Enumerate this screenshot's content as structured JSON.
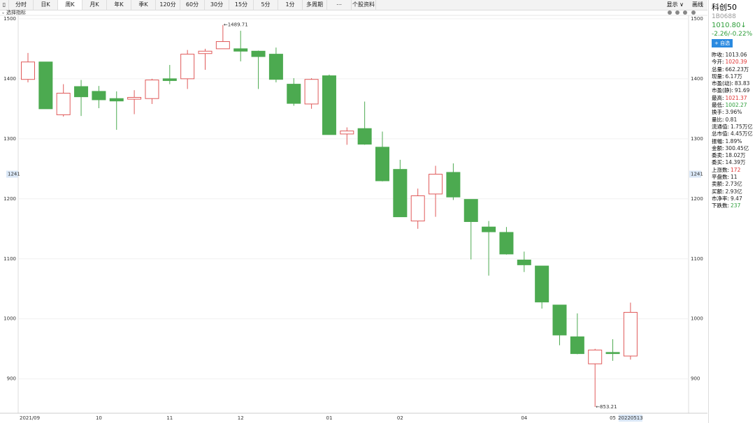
{
  "toolbar": {
    "tabs": [
      "分时",
      "日K",
      "周K",
      "月K",
      "年K",
      "季K",
      "120分",
      "60分",
      "30分",
      "15分",
      "5分",
      "1分",
      "多周期",
      "⋯",
      "个股资料"
    ],
    "selected": 2,
    "right": [
      "显示 ∨",
      "画线"
    ]
  },
  "indicator_label": "选择指标",
  "quote": {
    "name": "科创50",
    "code": "1B0688",
    "price": "1010.80↓",
    "change": "-2.26/-0.22%",
    "watch_button": "+ 自选",
    "rows": [
      {
        "label": "昨收:",
        "value": "1013.06",
        "color": "#222"
      },
      {
        "label": "今开:",
        "value": "1020.39",
        "color": "#e03030"
      },
      {
        "label": "总量:",
        "value": "662.23万",
        "color": "#222"
      },
      {
        "label": "现量:",
        "value": "6.17万",
        "color": "#222"
      },
      {
        "label": "市盈(动):",
        "value": "83.83",
        "color": "#222"
      },
      {
        "label": "市盈(静):",
        "value": "91.69",
        "color": "#222"
      },
      {
        "label": "最高:",
        "value": "1021.37",
        "color": "#e03030"
      },
      {
        "label": "最低:",
        "value": "1002.27",
        "color": "#2e9e3a"
      },
      {
        "label": "换手:",
        "value": "3.96%",
        "color": "#222"
      },
      {
        "label": "量比:",
        "value": "0.81",
        "color": "#222"
      },
      {
        "label": "流通值:",
        "value": "1.75万亿",
        "color": "#222"
      },
      {
        "label": "总市值:",
        "value": "4.45万亿",
        "color": "#222"
      },
      {
        "label": "振幅:",
        "value": "1.89%",
        "color": "#222"
      },
      {
        "label": "金额:",
        "value": "300.45亿",
        "color": "#222"
      },
      {
        "label": "委卖:",
        "value": "18.02万",
        "color": "#222"
      },
      {
        "label": "委买:",
        "value": "14.39万",
        "color": "#222"
      },
      {
        "label": "上涨数:",
        "value": "172",
        "color": "#e03030"
      },
      {
        "label": "平盘数:",
        "value": "11",
        "color": "#222"
      },
      {
        "label": "卖额:",
        "value": "2.73亿",
        "color": "#222"
      },
      {
        "label": "买额:",
        "value": "2.93亿",
        "color": "#222"
      },
      {
        "label": "市净率:",
        "value": "9.47",
        "color": "#222"
      },
      {
        "label": "下跌数:",
        "value": "237",
        "color": "#2e9e3a"
      }
    ]
  },
  "chart_data": {
    "type": "candlestick",
    "categories": [
      "2021/09",
      null,
      null,
      null,
      "10",
      null,
      null,
      null,
      "11",
      null,
      null,
      null,
      "12",
      null,
      null,
      null,
      null,
      "01",
      null,
      null,
      null,
      "02",
      null,
      null,
      null,
      null,
      null,
      null,
      "04",
      null,
      null,
      null,
      null,
      "05",
      null
    ],
    "open": [
      1399,
      1428,
      1340,
      1387,
      1379,
      1367,
      1366,
      1367,
      1400,
      1400,
      1442,
      1450,
      1450,
      1446,
      1441,
      1391,
      1358,
      1405,
      1308,
      1317,
      1286,
      1249,
      1163,
      1208,
      1244,
      1199,
      1153,
      1144,
      1098,
      1088,
      1023,
      970,
      925,
      944,
      938
    ],
    "high": [
      1443,
      1428,
      1391,
      1398,
      1388,
      1379,
      1381,
      1400,
      1423,
      1448,
      1450,
      1489.71,
      1480,
      1447,
      1452,
      1401,
      1401,
      1407,
      1319,
      1362,
      1312,
      1265,
      1217,
      1255,
      1259,
      1199,
      1163,
      1153,
      1112,
      1088,
      1023,
      1009,
      950,
      966,
      1027
    ],
    "low": [
      1394,
      1350,
      1337,
      1338,
      1351,
      1315,
      1341,
      1358,
      1391,
      1383,
      1415,
      1450,
      1429,
      1383,
      1394,
      1355,
      1350,
      1307,
      1290,
      1290,
      1229,
      1170,
      1150,
      1170,
      1198,
      1099,
      1072,
      1107,
      1078,
      1017,
      956,
      941,
      853.21,
      930,
      932
    ],
    "close": [
      1428,
      1350,
      1376,
      1370,
      1365,
      1363,
      1369,
      1398,
      1397,
      1441,
      1446,
      1462,
      1446,
      1437,
      1399,
      1359,
      1399,
      1307,
      1313,
      1291,
      1230,
      1170,
      1205,
      1241,
      1203,
      1162,
      1145,
      1108,
      1090,
      1028,
      973,
      942,
      948,
      942,
      1010.8
    ],
    "up_color": "#e05a5a",
    "down_color": "#4caa50",
    "ylim": [
      845,
      1508
    ],
    "yticks": [
      900,
      1000,
      1100,
      1200,
      1300,
      1400,
      1500
    ],
    "max_label": "←1489.71",
    "min_label": "←853.21",
    "cursor_value": 1241,
    "cursor_date": "20220513"
  }
}
